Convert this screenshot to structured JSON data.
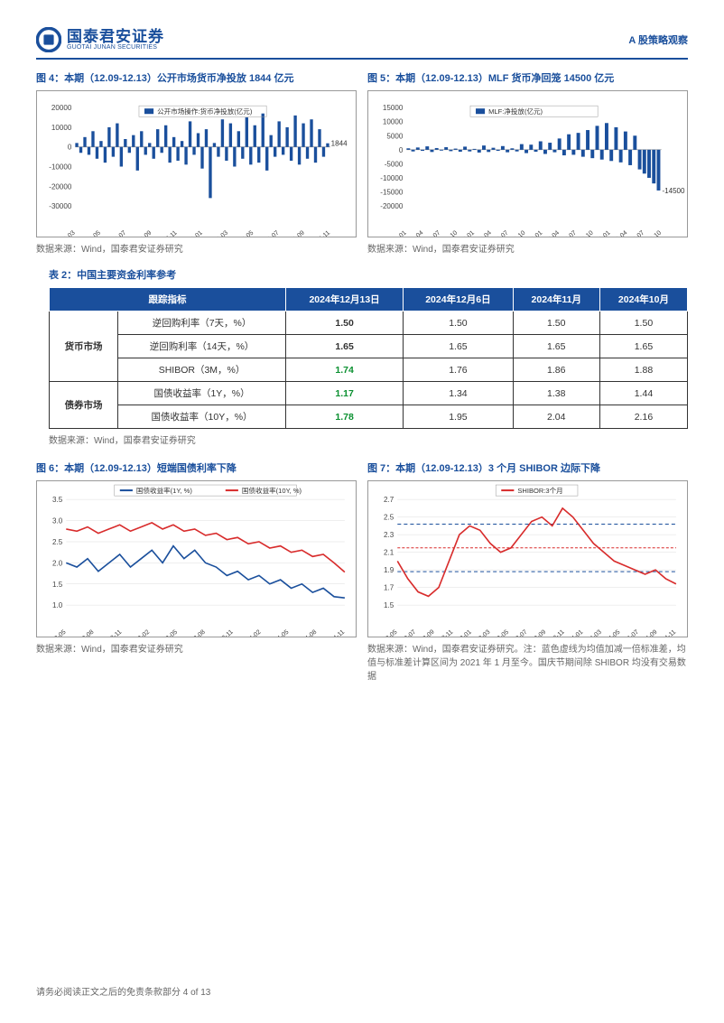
{
  "header": {
    "logo_cn": "国泰君安证券",
    "logo_en": "GUOTAI JUNAN SECURITIES",
    "right": "A 股策略观察"
  },
  "fig4": {
    "title": "图 4：本期（12.09-12.13）公开市场货币净投放 1844 亿元",
    "legend": "公开市场操作:货币净投放(亿元)",
    "ylim": [
      -30000,
      20000
    ],
    "yticks": [
      -30000,
      -20000,
      -10000,
      0,
      10000,
      20000
    ],
    "xticks": [
      "2023-03",
      "2023-05",
      "2023-07",
      "2023-09",
      "2023-11",
      "2024-01",
      "2024-03",
      "2024-05",
      "2024-07",
      "2024-09",
      "2024-11"
    ],
    "bar_color": "#1a4f9c",
    "end_label": "1844",
    "values": [
      2000,
      -3000,
      5000,
      -4000,
      8000,
      -6000,
      3000,
      -8000,
      10000,
      -5000,
      12000,
      -10000,
      4000,
      -3000,
      6000,
      -12000,
      8000,
      -4000,
      2000,
      -6000,
      9000,
      -3000,
      11000,
      -8000,
      5000,
      -7000,
      3000,
      -9000,
      13000,
      -4000,
      7000,
      -11000,
      9000,
      -26000,
      2000,
      -5000,
      14000,
      -7000,
      12000,
      -10000,
      8000,
      -6000,
      15000,
      -9000,
      11000,
      -8000,
      17000,
      -12000,
      6000,
      -5000,
      13000,
      -4000,
      10000,
      -7000,
      16000,
      -9000,
      12000,
      -6000,
      14000,
      -8000,
      9000,
      -5000,
      1844
    ],
    "source": "数据来源：Wind，国泰君安证券研究"
  },
  "fig5": {
    "title": "图 5：本期（12.09-12.13）MLF 货币净回笼 14500 亿元",
    "legend": "MLF:净投放(亿元)",
    "ylim": [
      -20000,
      15000
    ],
    "yticks": [
      -20000,
      -15000,
      -10000,
      -5000,
      0,
      5000,
      10000,
      15000
    ],
    "xticks": [
      "2021-01",
      "2021-04",
      "2021-07",
      "2021-10",
      "2022-01",
      "2022-04",
      "2022-07",
      "2022-10",
      "2023-01",
      "2023-04",
      "2023-07",
      "2023-10",
      "2024-01",
      "2024-04",
      "2024-07",
      "2024-10"
    ],
    "bar_color": "#1a4f9c",
    "end_label": "-14500",
    "values": [
      500,
      -600,
      800,
      -400,
      1200,
      -800,
      600,
      -300,
      900,
      -500,
      400,
      -700,
      1100,
      -600,
      300,
      -1000,
      1500,
      -800,
      700,
      -400,
      1300,
      -900,
      500,
      -600,
      2000,
      -1200,
      1800,
      -700,
      3000,
      -1500,
      2500,
      -900,
      4000,
      -2000,
      5500,
      -1800,
      6000,
      -2500,
      7000,
      -3000,
      8500,
      -3500,
      9500,
      -4000,
      8000,
      -4500,
      6500,
      -5500,
      5000,
      -7000,
      -8500,
      -10000,
      -12000,
      -14500
    ],
    "source": "数据来源：Wind，国泰君安证券研究"
  },
  "table2": {
    "title": "表 2：中国主要资金利率参考",
    "cols": [
      "跟踪指标",
      "2024年12月13日",
      "2024年12月6日",
      "2024年11月",
      "2024年10月"
    ],
    "rows": [
      {
        "group": "货币市场",
        "label": "逆回购利率（7天，%）",
        "bold": true,
        "green": false,
        "v": [
          "1.50",
          "1.50",
          "1.50",
          "1.50"
        ]
      },
      {
        "group": "",
        "label": "逆回购利率（14天，%）",
        "bold": true,
        "green": false,
        "v": [
          "1.65",
          "1.65",
          "1.65",
          "1.65"
        ]
      },
      {
        "group": "",
        "label": "SHIBOR（3M，%）",
        "bold": false,
        "green": true,
        "v": [
          "1.74",
          "1.76",
          "1.86",
          "1.88"
        ]
      },
      {
        "group": "债券市场",
        "label": "国债收益率（1Y，%）",
        "bold": false,
        "green": true,
        "v": [
          "1.17",
          "1.34",
          "1.38",
          "1.44"
        ]
      },
      {
        "group": "",
        "label": "国债收益率（10Y，%）",
        "bold": false,
        "green": true,
        "v": [
          "1.78",
          "1.95",
          "2.04",
          "2.16"
        ]
      }
    ],
    "source": "数据来源：Wind，国泰君安证券研究"
  },
  "fig6": {
    "title": "图 6：本期（12.09-12.13）短端国债利率下降",
    "legend1": "国债收益率(1Y, %)",
    "legend2": "国债收益率(10Y, %)",
    "color1": "#1a4f9c",
    "color2": "#d82c2c",
    "ylim": [
      1.0,
      3.5
    ],
    "yticks": [
      1.0,
      1.5,
      2.0,
      2.5,
      3.0,
      3.5
    ],
    "xticks": [
      "2022-05",
      "2022-08",
      "2022-11",
      "2023-02",
      "2023-05",
      "2023-08",
      "2023-11",
      "2024-02",
      "2024-05",
      "2024-08",
      "2024-11"
    ],
    "series1": [
      2.0,
      1.9,
      2.1,
      1.8,
      2.0,
      2.2,
      1.9,
      2.1,
      2.3,
      2.0,
      2.4,
      2.1,
      2.3,
      2.0,
      1.9,
      1.7,
      1.8,
      1.6,
      1.7,
      1.5,
      1.6,
      1.4,
      1.5,
      1.3,
      1.4,
      1.2,
      1.17
    ],
    "series2": [
      2.8,
      2.75,
      2.85,
      2.7,
      2.8,
      2.9,
      2.75,
      2.85,
      2.95,
      2.8,
      2.9,
      2.75,
      2.8,
      2.65,
      2.7,
      2.55,
      2.6,
      2.45,
      2.5,
      2.35,
      2.4,
      2.25,
      2.3,
      2.15,
      2.2,
      2.0,
      1.78
    ],
    "source": "数据来源：Wind，国泰君安证券研究"
  },
  "fig7": {
    "title": "图 7：本期（12.09-12.13）3 个月 SHIBOR 边际下降",
    "legend": "SHIBOR:3个月",
    "color": "#d82c2c",
    "band_color": "#1a4f9c",
    "mean_color": "#d82c2c",
    "ylim": [
      1.5,
      2.7
    ],
    "yticks": [
      1.5,
      1.7,
      1.9,
      2.1,
      2.3,
      2.5,
      2.7
    ],
    "xticks": [
      "2022-05",
      "2022-07",
      "2022-09",
      "2022-11",
      "2023-01",
      "2023-03",
      "2023-05",
      "2023-07",
      "2023-09",
      "2023-11",
      "2024-01",
      "2024-03",
      "2024-05",
      "2024-07",
      "2024-09",
      "2024-11"
    ],
    "series": [
      2.0,
      1.8,
      1.65,
      1.6,
      1.7,
      2.0,
      2.3,
      2.4,
      2.35,
      2.2,
      2.1,
      2.15,
      2.3,
      2.45,
      2.5,
      2.4,
      2.6,
      2.5,
      2.35,
      2.2,
      2.1,
      2.0,
      1.95,
      1.9,
      1.85,
      1.9,
      1.8,
      1.74
    ],
    "upper_band": 2.42,
    "lower_band": 1.88,
    "mean_line": 2.15,
    "source": "数据来源：Wind，国泰君安证券研究。注：蓝色虚线为均值加减一倍标准差，均值与标准差计算区间为 2021 年 1 月至今。国庆节期间除 SHIBOR 均没有交易数据"
  },
  "footer": "请务必阅读正文之后的免责条款部分  4 of 13"
}
